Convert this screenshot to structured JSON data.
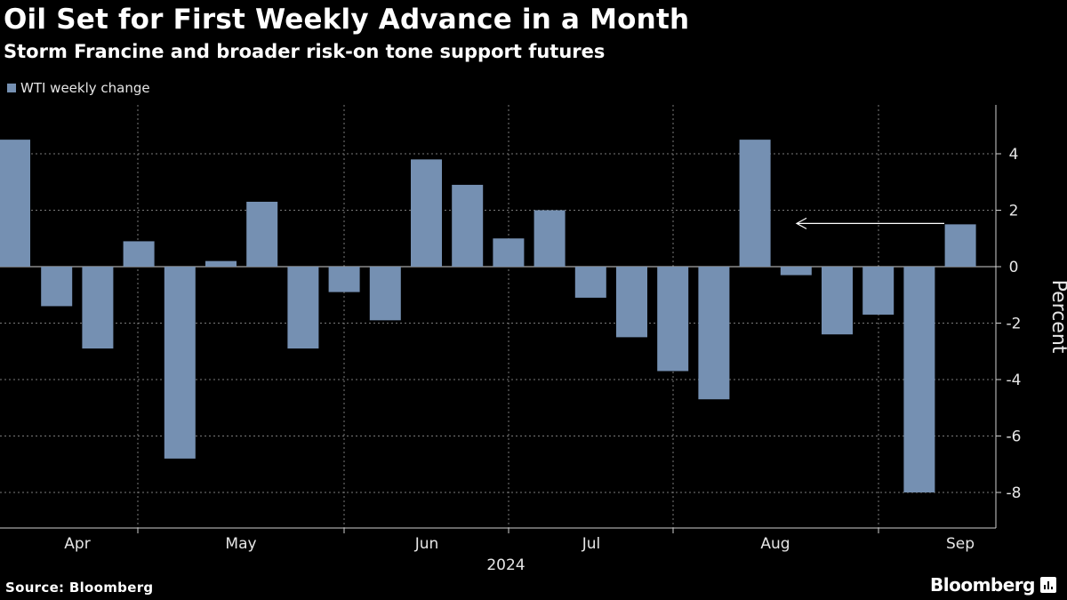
{
  "header": {
    "title": "Oil Set for First Weekly Advance in a Month",
    "subtitle": "Storm Francine and broader risk-on tone support futures"
  },
  "legend": {
    "label": "WTI weekly change",
    "color": "#7590b2"
  },
  "footer": {
    "source": "Source: Bloomberg",
    "brand": "Bloomberg"
  },
  "chart_data": {
    "type": "bar",
    "title": "Oil Set for First Weekly Advance in a Month",
    "subtitle": "Storm Francine and broader risk-on tone support futures",
    "ylabel": "Percent",
    "xlabel": "2024",
    "ylim": [
      -9.2,
      5.6
    ],
    "yticks": [
      4,
      2,
      0,
      -2,
      -4,
      -6,
      -8
    ],
    "ytick_labels": [
      "4",
      "2",
      "0",
      "-2",
      "-4",
      "-6",
      "-8"
    ],
    "month_labels": [
      "Apr",
      "May",
      "Jun",
      "Jul",
      "Aug",
      "Sep"
    ],
    "year_label": "2024",
    "annotation": "arrow pointing to latest week",
    "series": [
      {
        "name": "WTI weekly change",
        "color": "#7590b2",
        "values": [
          4.5,
          -1.4,
          -2.9,
          0.9,
          -6.8,
          0.2,
          2.3,
          -2.9,
          -0.9,
          -1.9,
          3.8,
          2.9,
          1.0,
          2.0,
          -1.1,
          -2.5,
          -3.7,
          -4.7,
          4.5,
          -0.3,
          -2.4,
          -1.7,
          -8.0,
          1.5
        ]
      }
    ]
  }
}
